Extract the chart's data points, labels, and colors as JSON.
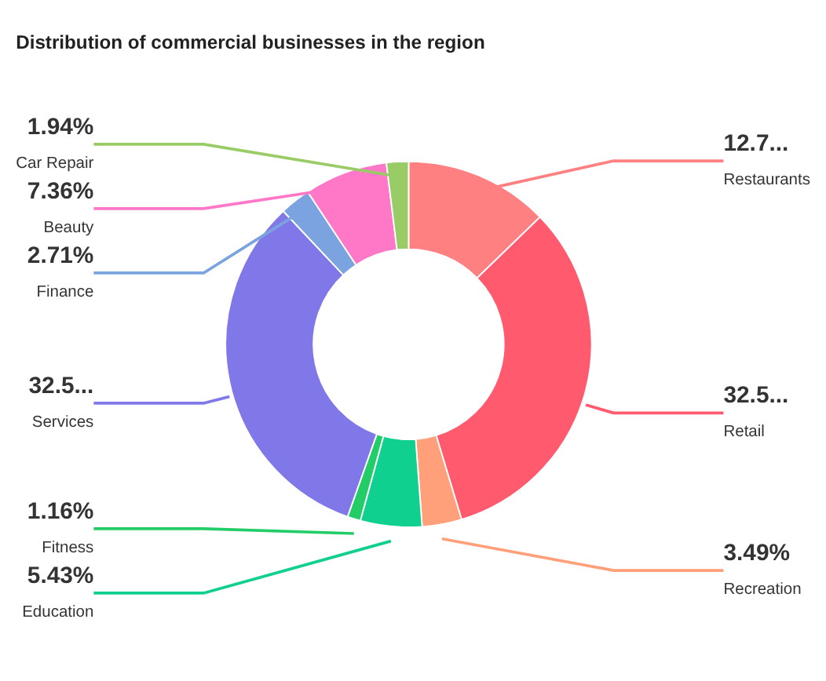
{
  "chart_data": {
    "type": "donut",
    "title": "Distribution of commercial businesses in the region",
    "categories": [
      "Restaurants",
      "Retail",
      "Recreation",
      "Education",
      "Fitness",
      "Services",
      "Finance",
      "Beauty",
      "Car Repair"
    ],
    "values": [
      12.75,
      32.58,
      3.49,
      5.43,
      1.16,
      32.58,
      2.71,
      7.36,
      1.94
    ],
    "value_labels": [
      "12.7...",
      "32.5...",
      "3.49%",
      "5.43%",
      "1.16%",
      "32.5...",
      "2.71%",
      "7.36%",
      "1.94%"
    ],
    "colors": [
      "#ff8080",
      "#ff5a6e",
      "#ffa07a",
      "#10d090",
      "#22cc66",
      "#8078e8",
      "#7ba3e0",
      "#ff78c8",
      "#99cc66"
    ]
  }
}
